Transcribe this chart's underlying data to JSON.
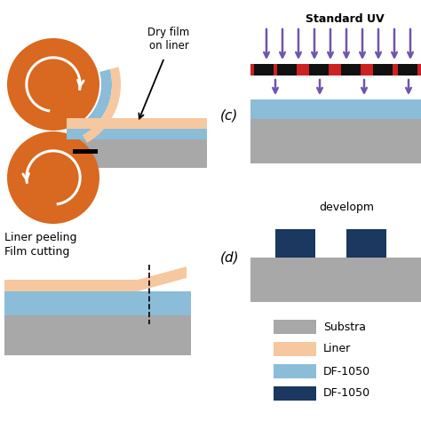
{
  "bg_color": "#ffffff",
  "orange_color": "#D96820",
  "substrate_color": "#A8A8A8",
  "liner_color": "#F5C8A0",
  "dry_film_color": "#8BBCD8",
  "mask_red_color": "#CC2222",
  "mask_black_color": "#111111",
  "df_dark_color": "#1A3860",
  "arrow_color": "#7055AA",
  "text_dry_film": "Dry film\non liner",
  "text_liner_peeling": "Liner peeling",
  "text_film_cutting": "Film cutting",
  "text_standard_uv": "Standard UV",
  "text_development": "developm",
  "text_substrate": "Substra",
  "text_liner": "Liner",
  "text_df_light": "DF-1050",
  "text_df_dark": "DF-1050",
  "label_c": "(c)",
  "label_d": "(d)"
}
